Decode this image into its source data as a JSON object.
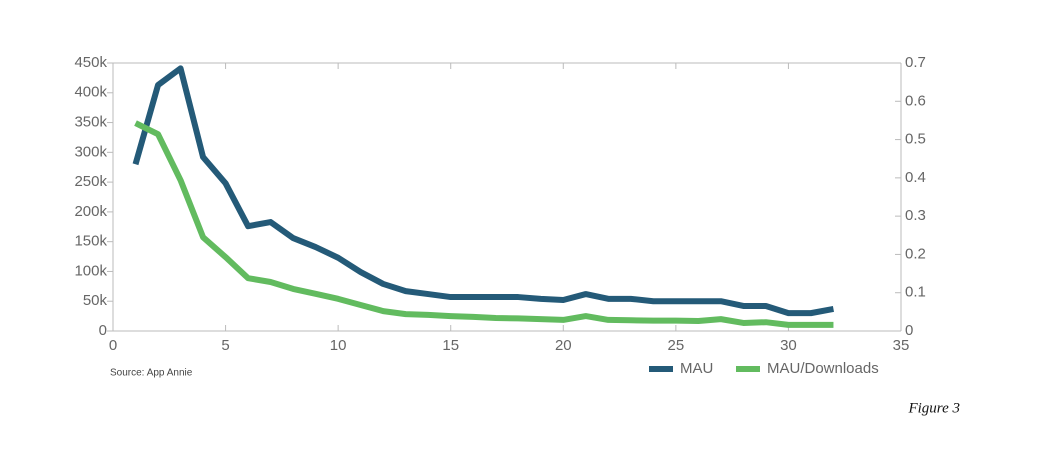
{
  "chart_data": {
    "type": "line",
    "source": "Source: App Annie",
    "figure_label": "Figure 3",
    "x": [
      1,
      2,
      3,
      4,
      5,
      6,
      7,
      8,
      9,
      10,
      11,
      12,
      13,
      14,
      15,
      16,
      17,
      18,
      19,
      20,
      21,
      22,
      23,
      24,
      25,
      26,
      27,
      28,
      29,
      30,
      31,
      32
    ],
    "series": [
      {
        "name": "MAU",
        "color": "#245a78",
        "axis": "y",
        "values": [
          280000,
          413000,
          441000,
          292000,
          248000,
          176000,
          183000,
          156000,
          141000,
          123000,
          99000,
          79000,
          67000,
          62000,
          57000,
          57000,
          57000,
          57000,
          54000,
          52000,
          62000,
          54000,
          54000,
          50000,
          50000,
          50000,
          50000,
          42000,
          42000,
          30000,
          30000,
          37000
        ]
      },
      {
        "name": "MAU/Downloads",
        "color": "#62bb5f",
        "axis": "y2",
        "values": [
          0.543,
          0.514,
          0.394,
          0.245,
          0.193,
          0.138,
          0.128,
          0.11,
          0.097,
          0.084,
          0.068,
          0.052,
          0.044,
          0.042,
          0.039,
          0.037,
          0.034,
          0.033,
          0.031,
          0.029,
          0.039,
          0.029,
          0.028,
          0.027,
          0.027,
          0.026,
          0.031,
          0.021,
          0.023,
          0.016,
          0.016,
          0.016
        ]
      }
    ],
    "xlim": [
      0,
      35
    ],
    "xticks": [
      0,
      5,
      10,
      15,
      20,
      25,
      30,
      35
    ],
    "ylim": [
      0,
      450000
    ],
    "yticks": [
      0,
      {
        "value": 50000,
        "label": "50k"
      },
      {
        "value": 100000,
        "label": "100k"
      },
      {
        "value": 150000,
        "label": "150k"
      },
      {
        "value": 200000,
        "label": "200k"
      },
      {
        "value": 250000,
        "label": "250k"
      },
      {
        "value": 300000,
        "label": "300k"
      },
      {
        "value": 350000,
        "label": "350k"
      },
      {
        "value": 400000,
        "label": "400k"
      },
      {
        "value": 450000,
        "label": "450k"
      }
    ],
    "y2lim": [
      0,
      0.7
    ],
    "y2ticks": [
      0,
      0.1,
      0.2,
      0.3,
      0.4,
      0.5,
      0.6,
      0.7
    ],
    "legend": "bottom-right",
    "grid": false
  }
}
